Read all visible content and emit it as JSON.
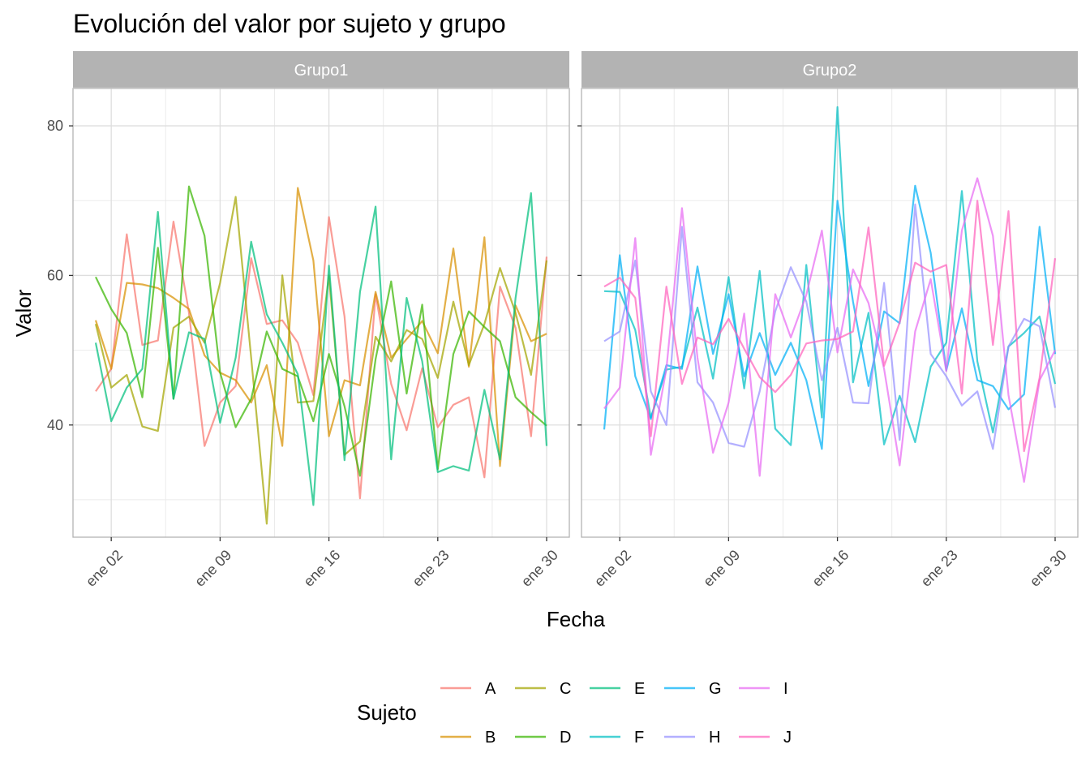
{
  "chart_data": {
    "type": "line",
    "title": "Evolución del valor por sujeto y grupo",
    "xlabel": "Fecha",
    "ylabel": "Valor",
    "x": [
      "2024-01-01",
      "2024-01-02",
      "2024-01-03",
      "2024-01-04",
      "2024-01-05",
      "2024-01-06",
      "2024-01-07",
      "2024-01-08",
      "2024-01-09",
      "2024-01-10",
      "2024-01-11",
      "2024-01-12",
      "2024-01-13",
      "2024-01-14",
      "2024-01-15",
      "2024-01-16",
      "2024-01-17",
      "2024-01-18",
      "2024-01-19",
      "2024-01-20",
      "2024-01-21",
      "2024-01-22",
      "2024-01-23",
      "2024-01-24",
      "2024-01-25",
      "2024-01-26",
      "2024-01-27",
      "2024-01-28",
      "2024-01-29",
      "2024-01-30"
    ],
    "xticks": [
      {
        "date": "2024-01-02",
        "label": "ene 02"
      },
      {
        "date": "2024-01-09",
        "label": "ene 09"
      },
      {
        "date": "2024-01-16",
        "label": "ene 16"
      },
      {
        "date": "2024-01-23",
        "label": "ene 23"
      },
      {
        "date": "2024-01-30",
        "label": "ene 30"
      }
    ],
    "ylim": [
      25,
      85
    ],
    "yticks": [
      40,
      60,
      80
    ],
    "grid": true,
    "legend": {
      "title": "Sujeto",
      "position": "bottom",
      "items": [
        {
          "name": "A",
          "color": "#F8766D"
        },
        {
          "name": "B",
          "color": "#D89000"
        },
        {
          "name": "C",
          "color": "#A3A500"
        },
        {
          "name": "D",
          "color": "#39B600"
        },
        {
          "name": "E",
          "color": "#00BF7D"
        },
        {
          "name": "F",
          "color": "#00BFC4"
        },
        {
          "name": "G",
          "color": "#00B0F6"
        },
        {
          "name": "H",
          "color": "#9590FF"
        },
        {
          "name": "I",
          "color": "#E76BF3"
        },
        {
          "name": "J",
          "color": "#FF62BC"
        }
      ]
    },
    "panels": [
      {
        "name": "Grupo1",
        "series": [
          {
            "name": "A",
            "values": [
              44.5,
              47.5,
              65.5,
              50.7,
              51.3,
              67.2,
              55.0,
              37.2,
              43.0,
              45.2,
              62.3,
              53.5,
              54.0,
              51.0,
              44.0,
              67.8,
              54.5,
              30.2,
              57.5,
              45.5,
              39.3,
              47.6,
              39.7,
              42.7,
              43.7,
              33.0,
              58.5,
              53.0,
              38.5,
              62.5
            ]
          },
          {
            "name": "B",
            "values": [
              54.0,
              47.5,
              59.0,
              58.8,
              58.3,
              57.0,
              55.5,
              49.3,
              47.0,
              46.0,
              43.0,
              48.0,
              37.2,
              71.7,
              62.0,
              38.5,
              46.0,
              45.3,
              57.8,
              49.0,
              51.5,
              53.9,
              49.6,
              63.6,
              47.8,
              65.1,
              34.5,
              56.0,
              51.2,
              52.2
            ]
          },
          {
            "name": "C",
            "values": [
              53.5,
              45.0,
              46.7,
              39.8,
              39.2,
              53.0,
              54.5,
              51.0,
              59.0,
              70.5,
              49.0,
              26.8,
              60.0,
              43.0,
              43.2,
              60.0,
              36.0,
              37.8,
              51.8,
              48.5,
              52.7,
              51.5,
              46.3,
              56.5,
              48.0,
              53.5,
              61.0,
              55.0,
              46.7,
              62.0
            ]
          },
          {
            "name": "D",
            "values": [
              59.8,
              55.5,
              52.3,
              43.7,
              63.7,
              43.5,
              71.9,
              65.3,
              47.0,
              39.7,
              43.5,
              52.5,
              47.5,
              46.5,
              40.5,
              49.5,
              42.5,
              33.2,
              48.8,
              59.2,
              44.2,
              56.1,
              34.1,
              49.5,
              55.2,
              53.1,
              51.2,
              43.7,
              41.7,
              39.9
            ]
          },
          {
            "name": "E",
            "values": [
              51.0,
              40.5,
              45.0,
              47.5,
              68.5,
              43.5,
              52.4,
              51.5,
              40.3,
              49.0,
              64.5,
              54.8,
              51.0,
              46.8,
              29.3,
              61.3,
              35.3,
              57.8,
              69.2,
              35.4,
              57.0,
              48.5,
              33.7,
              34.5,
              33.9,
              44.7,
              35.4,
              57.0,
              71.0,
              37.2
            ]
          }
        ]
      },
      {
        "name": "Grupo2",
        "series": [
          {
            "name": "F",
            "values": [
              57.9,
              57.8,
              52.7,
              41.0,
              47.4,
              47.8,
              55.7,
              46.2,
              59.8,
              44.9,
              60.6,
              39.5,
              37.3,
              61.4,
              41.0,
              82.5,
              45.7,
              55.0,
              37.4,
              43.9,
              37.7,
              47.8,
              51.0,
              71.3,
              48.5,
              39.0,
              50.5,
              52.3,
              54.5,
              45.5
            ]
          },
          {
            "name": "G",
            "values": [
              39.4,
              62.7,
              46.5,
              40.8,
              48.0,
              47.5,
              61.2,
              49.5,
              57.5,
              46.5,
              52.3,
              46.7,
              51.0,
              46.0,
              36.8,
              70.0,
              56.5,
              45.2,
              55.2,
              53.6,
              72.0,
              63.0,
              47.3,
              55.6,
              46.0,
              45.2,
              42.1,
              44.1,
              66.5,
              49.5
            ]
          },
          {
            "name": "H",
            "values": [
              51.2,
              52.5,
              62.0,
              44.5,
              40.0,
              66.5,
              45.7,
              43.0,
              37.6,
              37.1,
              44.5,
              55.2,
              61.1,
              56.5,
              46.0,
              53.0,
              43.0,
              42.9,
              59.0,
              38.0,
              69.5,
              49.5,
              46.5,
              42.6,
              44.5,
              36.8,
              50.5,
              54.2,
              53.2,
              42.3
            ]
          },
          {
            "name": "I",
            "values": [
              42.2,
              45.0,
              65.0,
              36.0,
              47.5,
              69.0,
              49.0,
              36.3,
              43.0,
              54.9,
              33.2,
              57.5,
              51.7,
              57.4,
              66.0,
              49.7,
              60.8,
              56.3,
              47.5,
              34.6,
              52.5,
              59.5,
              47.2,
              66.0,
              73.0,
              65.3,
              44.0,
              32.4,
              46.0,
              50.0
            ]
          },
          {
            "name": "J",
            "values": [
              58.5,
              59.7,
              57.0,
              38.5,
              58.5,
              45.5,
              51.7,
              50.8,
              54.2,
              50.2,
              46.4,
              44.4,
              46.7,
              50.9,
              51.3,
              51.5,
              52.5,
              66.4,
              47.9,
              53.7,
              61.7,
              60.5,
              61.4,
              44.2,
              70.0,
              50.7,
              68.6,
              36.5,
              46.3,
              62.3
            ]
          }
        ]
      }
    ]
  }
}
